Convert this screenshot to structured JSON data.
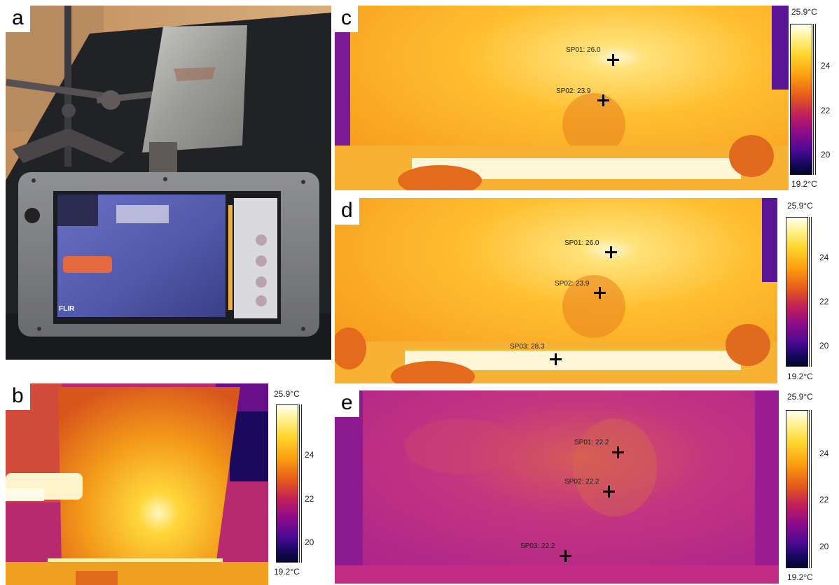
{
  "panels": {
    "a": {
      "letter": "a",
      "flir_logo": "FLIR"
    },
    "b": {
      "letter": "b",
      "scale": {
        "max": "25.9°C",
        "min": "19.2°C",
        "ticks": [
          "24",
          "22",
          "20"
        ]
      }
    },
    "c": {
      "letter": "c",
      "spots": [
        {
          "label": "SP01: 26.0"
        },
        {
          "label": "SP02: 23.9"
        }
      ],
      "scale": {
        "max": "25.9°C",
        "min": "19.2°C",
        "ticks": [
          "24",
          "22",
          "20"
        ]
      }
    },
    "d": {
      "letter": "d",
      "spots": [
        {
          "label": "SP01: 26.0"
        },
        {
          "label": "SP02: 23.9"
        },
        {
          "label": "SP03: 28.3"
        }
      ],
      "scale": {
        "max": "25.9°C",
        "min": "19.2°C",
        "ticks": [
          "24",
          "22",
          "20"
        ]
      }
    },
    "e": {
      "letter": "e",
      "spots": [
        {
          "label": "SP01: 22.2"
        },
        {
          "label": "SP02: 22.2"
        },
        {
          "label": "SP03: 22.2"
        }
      ],
      "scale": {
        "max": "25.9°C",
        "min": "19.2°C",
        "ticks": [
          "24",
          "22",
          "20"
        ]
      }
    }
  },
  "colors": {
    "thermal_hot": "#ffd21e",
    "thermal_warm": "#f0971a",
    "thermal_cool": "#b0208a",
    "thermal_cold": "#2a0a78"
  }
}
